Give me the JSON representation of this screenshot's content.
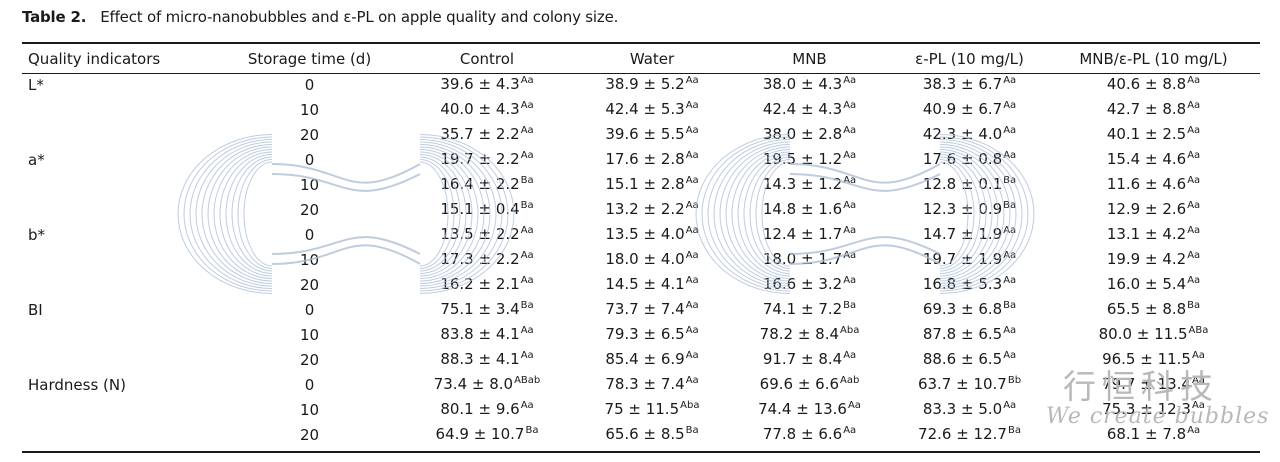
{
  "caption": {
    "label": "Table 2.",
    "text": "Effect of micro-nanobubbles and ε-PL on apple quality and colony size."
  },
  "columns": [
    "Quality indicators",
    "Storage time (d)",
    "Control",
    "Water",
    "MNB",
    "ε-PL (10 mg/L)",
    "MNB/ε-PL (10 mg/L)"
  ],
  "rows": [
    {
      "indicator": "L*",
      "time": "0",
      "cells": [
        [
          "39.6 ± 4.3",
          "Aa"
        ],
        [
          "38.9 ± 5.2",
          "Aa"
        ],
        [
          "38.0 ± 4.3",
          "Aa"
        ],
        [
          "38.3 ± 6.7",
          "Aa"
        ],
        [
          "40.6 ± 8.8",
          "Aa"
        ]
      ]
    },
    {
      "indicator": "",
      "time": "10",
      "cells": [
        [
          "40.0 ± 4.3",
          "Aa"
        ],
        [
          "42.4 ± 5.3",
          "Aa"
        ],
        [
          "42.4 ± 4.3",
          "Aa"
        ],
        [
          "40.9 ± 6.7",
          "Aa"
        ],
        [
          "42.7 ± 8.8",
          "Aa"
        ]
      ]
    },
    {
      "indicator": "",
      "time": "20",
      "cells": [
        [
          "35.7 ± 2.2",
          "Aa"
        ],
        [
          "39.6 ± 5.5",
          "Aa"
        ],
        [
          "38.0 ± 2.8",
          "Aa"
        ],
        [
          "42.3 ± 4.0",
          "Aa"
        ],
        [
          "40.1 ± 2.5",
          "Aa"
        ]
      ]
    },
    {
      "indicator": "a*",
      "time": "0",
      "cells": [
        [
          "19.7 ± 2.2",
          "Aa"
        ],
        [
          "17.6 ± 2.8",
          "Aa"
        ],
        [
          "19.5 ± 1.2",
          "Aa"
        ],
        [
          "17.6 ± 0.8",
          "Aa"
        ],
        [
          "15.4 ± 4.6",
          "Aa"
        ]
      ]
    },
    {
      "indicator": "",
      "time": "10",
      "cells": [
        [
          "16.4 ± 2.2",
          "Ba"
        ],
        [
          "15.1 ± 2.8",
          "Aa"
        ],
        [
          "14.3 ± 1.2",
          "Aa"
        ],
        [
          "12.8 ± 0.1",
          "Ba"
        ],
        [
          "11.6 ± 4.6",
          "Aa"
        ]
      ]
    },
    {
      "indicator": "",
      "time": "20",
      "cells": [
        [
          "15.1 ± 0.4",
          "Ba"
        ],
        [
          "13.2 ± 2.2",
          "Aa"
        ],
        [
          "14.8 ± 1.6",
          "Aa"
        ],
        [
          "12.3 ± 0.9",
          "Ba"
        ],
        [
          "12.9 ± 2.6",
          "Aa"
        ]
      ]
    },
    {
      "indicator": "b*",
      "time": "0",
      "cells": [
        [
          "13.5 ± 2.2",
          "Aa"
        ],
        [
          "13.5 ± 4.0",
          "Aa"
        ],
        [
          "12.4 ± 1.7",
          "Aa"
        ],
        [
          "14.7 ± 1.9",
          "Aa"
        ],
        [
          "13.1 ± 4.2",
          "Aa"
        ]
      ]
    },
    {
      "indicator": "",
      "time": "10",
      "cells": [
        [
          "17.3 ± 2.2",
          "Aa"
        ],
        [
          "18.0 ± 4.0",
          "Aa"
        ],
        [
          "18.0 ± 1.7",
          "Aa"
        ],
        [
          "19.7 ± 1.9",
          "Aa"
        ],
        [
          "19.9 ± 4.2",
          "Aa"
        ]
      ]
    },
    {
      "indicator": "",
      "time": "20",
      "cells": [
        [
          "16.2 ± 2.1",
          "Aa"
        ],
        [
          "14.5 ± 4.1",
          "Aa"
        ],
        [
          "16.6 ± 3.2",
          "Aa"
        ],
        [
          "16.8 ± 5.3",
          "Aa"
        ],
        [
          "16.0 ± 5.4",
          "Aa"
        ]
      ]
    },
    {
      "indicator": "BI",
      "time": "0",
      "cells": [
        [
          "75.1 ± 3.4",
          "Ba"
        ],
        [
          "73.7 ± 7.4",
          "Aa"
        ],
        [
          "74.1 ± 7.2",
          "Ba"
        ],
        [
          "69.3 ± 6.8",
          "Ba"
        ],
        [
          "65.5 ± 8.8",
          "Ba"
        ]
      ]
    },
    {
      "indicator": "",
      "time": "10",
      "cells": [
        [
          "83.8 ± 4.1",
          "Aa"
        ],
        [
          "79.3 ± 6.5",
          "Aa"
        ],
        [
          "78.2 ± 8.4",
          "Aba"
        ],
        [
          "87.8 ± 6.5",
          "Aa"
        ],
        [
          "80.0 ± 11.5",
          "ABa"
        ]
      ]
    },
    {
      "indicator": "",
      "time": "20",
      "cells": [
        [
          "88.3 ± 4.1",
          "Aa"
        ],
        [
          "85.4 ± 6.9",
          "Aa"
        ],
        [
          "91.7 ± 8.4",
          "Aa"
        ],
        [
          "88.6 ± 6.5",
          "Aa"
        ],
        [
          "96.5 ± 11.5",
          "Aa"
        ]
      ]
    },
    {
      "indicator": "Hardness (N)",
      "time": "0",
      "cells": [
        [
          "73.4 ± 8.0",
          "ABab"
        ],
        [
          "78.3 ± 7.4",
          "Aa"
        ],
        [
          "69.6 ± 6.6",
          "Aab"
        ],
        [
          "63.7 ± 10.7",
          "Bb"
        ],
        [
          "79.7 ± 13.4",
          "Aa"
        ]
      ]
    },
    {
      "indicator": "",
      "time": "10",
      "cells": [
        [
          "80.1 ± 9.6",
          "Aa"
        ],
        [
          "75 ± 11.5",
          "Aba"
        ],
        [
          "74.4 ± 13.6",
          "Aa"
        ],
        [
          "83.3 ± 5.0",
          "Aa"
        ],
        [
          "75.3 ± 12.3",
          "Aa"
        ]
      ]
    },
    {
      "indicator": "",
      "time": "20",
      "cells": [
        [
          "64.9 ± 10.7",
          "Ba"
        ],
        [
          "65.6 ± 8.5",
          "Ba"
        ],
        [
          "77.8 ± 6.6",
          "Aa"
        ],
        [
          "72.6 ± 12.7",
          "Ba"
        ],
        [
          "68.1 ± 7.8",
          "Aa"
        ]
      ]
    }
  ],
  "watermark": {
    "text": "行恒科技",
    "subtext": "We create bubbles",
    "color": "#b8b8b8",
    "bubble_color": "#a9bcd6"
  }
}
